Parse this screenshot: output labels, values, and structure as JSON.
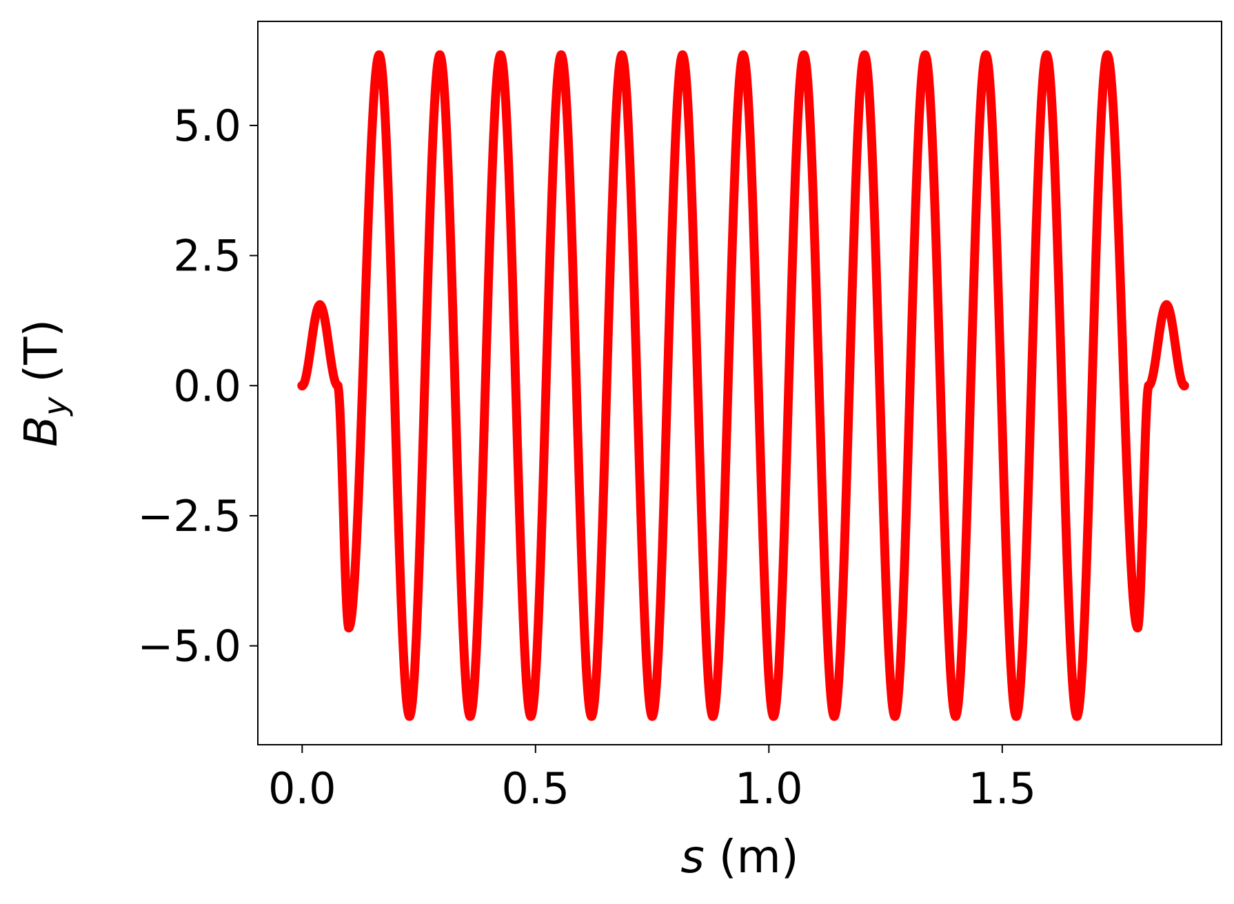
{
  "chart_data": {
    "type": "line",
    "title": "",
    "xlabel": "s (m)",
    "ylabel": "B_y (T)",
    "xlabel_parts": {
      "var": "s",
      "unit": " (m)"
    },
    "ylabel_parts": {
      "var": "B",
      "sub": "y",
      "unit": " (T)"
    },
    "xlim": [
      -0.095,
      1.97
    ],
    "ylim": [
      -6.9,
      7.0
    ],
    "xticks": [
      0.0,
      0.5,
      1.0,
      1.5
    ],
    "xtick_labels": [
      "0.0",
      "0.5",
      "1.0",
      "1.5"
    ],
    "yticks": [
      -5.0,
      -2.5,
      0.0,
      2.5,
      5.0
    ],
    "ytick_labels": [
      "−5.0",
      "−2.5",
      "0.0",
      "2.5",
      "5.0"
    ],
    "grid": false,
    "legend": "none",
    "series": [
      {
        "color": "#ff0000",
        "marker": "dot",
        "x": [
          0.0,
          0.038,
          0.076,
          0.1,
          0.165,
          0.23,
          0.295,
          0.36,
          0.425,
          0.49,
          0.555,
          0.62,
          0.685,
          0.75,
          0.815,
          0.88,
          0.945,
          1.01,
          1.075,
          1.14,
          1.205,
          1.27,
          1.335,
          1.4,
          1.465,
          1.53,
          1.595,
          1.66,
          1.725,
          1.79,
          1.814,
          1.852,
          1.89
        ],
        "y": [
          0.0,
          1.55,
          0.0,
          -4.65,
          6.35,
          -6.35,
          6.35,
          -6.35,
          6.35,
          -6.35,
          6.35,
          -6.35,
          6.35,
          -6.35,
          6.35,
          -6.35,
          6.35,
          -6.35,
          6.35,
          -6.35,
          6.35,
          -6.35,
          6.35,
          -6.35,
          6.35,
          -6.35,
          6.35,
          -6.35,
          6.35,
          -4.65,
          0.0,
          1.55,
          0.0
        ]
      }
    ]
  }
}
